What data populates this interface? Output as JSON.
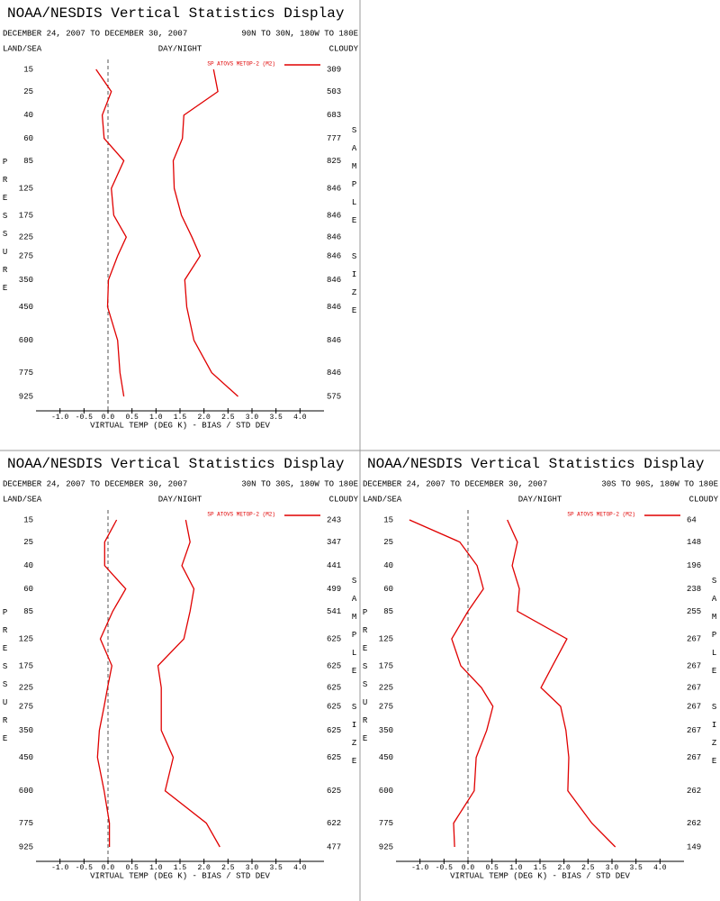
{
  "chart_data": [
    {
      "type": "line",
      "title": "NOAA/NESDIS Vertical Statistics Display",
      "subtitle": "DECEMBER 24, 2007 TO DECEMBER 30, 2007",
      "region": "90N TO 30N, 180W TO 180E",
      "left_header": "LAND/SEA",
      "center_header": "DAY/NIGHT",
      "right_header": "CLOUDY",
      "xlabel": "VIRTUAL TEMP (DEG K) - BIAS / STD DEV",
      "ylabel": "PRESSURE",
      "y2label": "SAMPLE SIZE",
      "y": [
        15,
        25,
        40,
        60,
        85,
        125,
        175,
        225,
        275,
        350,
        450,
        600,
        775,
        925
      ],
      "ylim": [
        15,
        925
      ],
      "xlim": [
        -1.5,
        4.5
      ],
      "xticks": [
        {
          "value": -1.0,
          "label": "-1.0"
        },
        {
          "value": -0.5,
          "label": "-0.5"
        },
        {
          "value": 0,
          "label": "0.0"
        },
        {
          "value": 0.5,
          "label": "0.5"
        },
        {
          "value": 1,
          "label": "1.0"
        },
        {
          "value": 1.5,
          "label": "1.5"
        },
        {
          "value": 2,
          "label": "2.0"
        },
        {
          "value": 2.5,
          "label": "2.5"
        },
        {
          "value": 3,
          "label": "3.0"
        },
        {
          "value": 3.5,
          "label": "3.5"
        },
        {
          "value": 4,
          "label": "4.0"
        }
      ],
      "series": [
        {
          "name": "SP ATOVS METOP-2 (M2)",
          "color": "#e00000",
          "bias": [
            -0.25,
            0.07,
            -0.12,
            -0.08,
            0.33,
            0.07,
            0.12,
            0.38,
            0.2,
            0.01,
            -0.01,
            0.2,
            0.25,
            0.33
          ],
          "std_dev": [
            2.2,
            2.29,
            1.58,
            1.55,
            1.36,
            1.38,
            1.53,
            1.75,
            1.92,
            1.6,
            1.64,
            1.79,
            2.16,
            2.71
          ]
        }
      ],
      "sample_size": [
        309,
        503,
        683,
        777,
        825,
        846,
        846,
        846,
        846,
        846,
        846,
        846,
        846,
        575
      ]
    },
    {
      "type": "line",
      "title": "NOAA/NESDIS Vertical Statistics Display",
      "subtitle": "DECEMBER 24, 2007 TO DECEMBER 30, 2007",
      "region": "30N TO 30S, 180W TO 180E",
      "left_header": "LAND/SEA",
      "center_header": "DAY/NIGHT",
      "right_header": "CLOUDY",
      "xlabel": "VIRTUAL TEMP (DEG K) - BIAS / STD DEV",
      "ylabel": "PRESSURE",
      "y2label": "SAMPLE SIZE",
      "y": [
        15,
        25,
        40,
        60,
        85,
        125,
        175,
        225,
        275,
        350,
        450,
        600,
        775,
        925
      ],
      "ylim": [
        15,
        925
      ],
      "xlim": [
        -1.5,
        4.5
      ],
      "xticks": [
        {
          "value": -1.0,
          "label": "-1.0"
        },
        {
          "value": -0.5,
          "label": "-0.5"
        },
        {
          "value": 0,
          "label": "0.0"
        },
        {
          "value": 0.5,
          "label": "0.5"
        },
        {
          "value": 1,
          "label": "1.0"
        },
        {
          "value": 1.5,
          "label": "1.5"
        },
        {
          "value": 2,
          "label": "2.0"
        },
        {
          "value": 2.5,
          "label": "2.5"
        },
        {
          "value": 3,
          "label": "3.0"
        },
        {
          "value": 3.5,
          "label": "3.5"
        },
        {
          "value": 4,
          "label": "4.0"
        }
      ],
      "series": [
        {
          "name": "SP ATOVS METOP-2 (M2)",
          "color": "#e00000",
          "bias": [
            0.18,
            -0.07,
            -0.07,
            0.37,
            0.1,
            -0.16,
            0.08,
            -0.01,
            -0.08,
            -0.18,
            -0.22,
            -0.08,
            0.03,
            0.03
          ],
          "std_dev": [
            1.62,
            1.71,
            1.54,
            1.79,
            1.71,
            1.58,
            1.04,
            1.11,
            1.11,
            1.11,
            1.36,
            1.19,
            2.05,
            2.33
          ]
        }
      ],
      "sample_size": [
        243,
        347,
        441,
        499,
        541,
        625,
        625,
        625,
        625,
        625,
        625,
        625,
        622,
        477
      ]
    },
    {
      "type": "line",
      "title": "NOAA/NESDIS Vertical Statistics Display",
      "subtitle": "DECEMBER 24, 2007 TO DECEMBER 30, 2007",
      "region": "30S TO 90S, 180W TO 180E",
      "left_header": "LAND/SEA",
      "center_header": "DAY/NIGHT",
      "right_header": "CLOUDY",
      "xlabel": "VIRTUAL TEMP (DEG K) - BIAS / STD DEV",
      "ylabel": "PRESSURE",
      "y2label": "SAMPLE SIZE",
      "y": [
        15,
        25,
        40,
        60,
        85,
        125,
        175,
        225,
        275,
        350,
        450,
        600,
        775,
        925
      ],
      "ylim": [
        15,
        925
      ],
      "xlim": [
        -1.5,
        4.5
      ],
      "xticks": [
        {
          "value": -1.0,
          "label": "-1.0"
        },
        {
          "value": -0.5,
          "label": "-0.5"
        },
        {
          "value": 0,
          "label": "0.0"
        },
        {
          "value": 0.5,
          "label": "0.5"
        },
        {
          "value": 1,
          "label": "1.0"
        },
        {
          "value": 1.5,
          "label": "1.5"
        },
        {
          "value": 2,
          "label": "2.0"
        },
        {
          "value": 2.5,
          "label": "2.5"
        },
        {
          "value": 3,
          "label": "3.0"
        },
        {
          "value": 3.5,
          "label": "3.5"
        },
        {
          "value": 4,
          "label": "4.0"
        }
      ],
      "series": [
        {
          "name": "SP ATOVS METOP-2 (M2)",
          "color": "#e00000",
          "bias": [
            -1.22,
            -0.17,
            0.19,
            0.32,
            0.0,
            -0.34,
            -0.15,
            0.28,
            0.52,
            0.39,
            0.17,
            0.13,
            -0.3,
            -0.28
          ],
          "std_dev": [
            0.82,
            1.03,
            0.92,
            1.07,
            1.03,
            2.06,
            1.76,
            1.52,
            1.93,
            2.04,
            2.1,
            2.08,
            2.58,
            3.07
          ]
        }
      ],
      "sample_size": [
        64,
        148,
        196,
        238,
        255,
        267,
        267,
        267,
        267,
        267,
        267,
        262,
        262,
        149
      ]
    }
  ]
}
